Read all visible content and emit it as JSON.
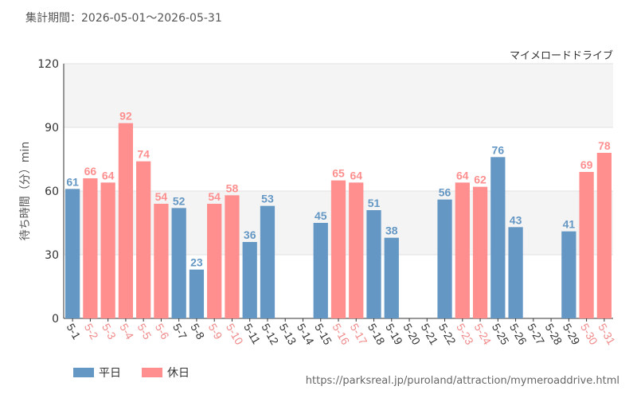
{
  "period_label": "集計期間：2026-05-01～2026-05-31",
  "source_url": "https://parksreal.jp/puroland/attraction/mymeroaddrive.html",
  "legend": {
    "weekday_label": "平日",
    "holiday_label": "休日"
  },
  "colors": {
    "weekday": "#6497c4",
    "holiday": "#ff8f8f",
    "holiday_tick": "#f08a8a",
    "band": "#f4f4f4"
  },
  "chart_data": {
    "type": "bar",
    "title": "マイメロードドライブ",
    "ylabel": "待ち時間（分）min",
    "ylim": [
      0,
      120
    ],
    "yticks": [
      0,
      30,
      60,
      90,
      120
    ],
    "categories": [
      "5-1",
      "5-2",
      "5-3",
      "5-4",
      "5-5",
      "5-6",
      "5-7",
      "5-8",
      "5-9",
      "5-10",
      "5-11",
      "5-12",
      "5-13",
      "5-14",
      "5-15",
      "5-16",
      "5-17",
      "5-18",
      "5-19",
      "5-20",
      "5-21",
      "5-22",
      "5-23",
      "5-24",
      "5-25",
      "5-26",
      "5-27",
      "5-28",
      "5-29",
      "5-30",
      "5-31"
    ],
    "values": [
      61,
      66,
      64,
      92,
      74,
      54,
      52,
      23,
      54,
      58,
      36,
      53,
      null,
      null,
      45,
      65,
      64,
      51,
      38,
      null,
      null,
      56,
      64,
      62,
      76,
      43,
      null,
      null,
      41,
      69,
      78
    ],
    "day_type": [
      "weekday",
      "holiday",
      "holiday",
      "holiday",
      "holiday",
      "holiday",
      "weekday",
      "weekday",
      "holiday",
      "holiday",
      "weekday",
      "weekday",
      "weekday",
      "weekday",
      "weekday",
      "holiday",
      "holiday",
      "weekday",
      "weekday",
      "weekday",
      "weekday",
      "weekday",
      "holiday",
      "holiday",
      "weekday",
      "weekday",
      "weekday",
      "weekday",
      "weekday",
      "holiday",
      "holiday"
    ]
  }
}
